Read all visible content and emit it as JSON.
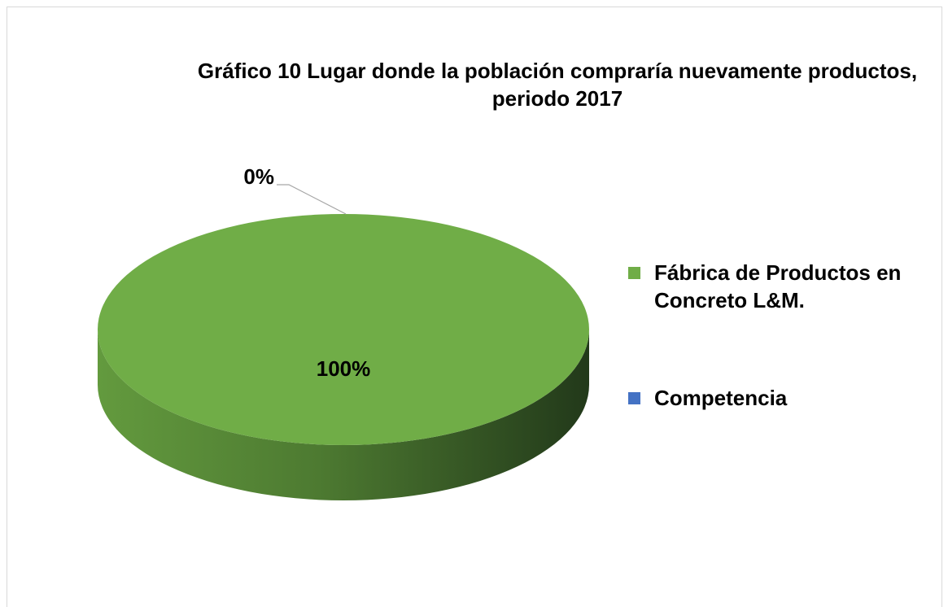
{
  "chart_data": {
    "type": "pie",
    "title": "Gráfico 10 Lugar donde la población compraría nuevamente productos, periodo 2017",
    "categories": [
      "Fábrica de Productos en Concreto L&M.",
      "Competencia"
    ],
    "values": [
      100,
      0
    ],
    "value_labels": [
      "100%",
      "0%"
    ],
    "colors": [
      "#70ad47",
      "#4472c4"
    ],
    "legend": "right",
    "three_d": true
  }
}
